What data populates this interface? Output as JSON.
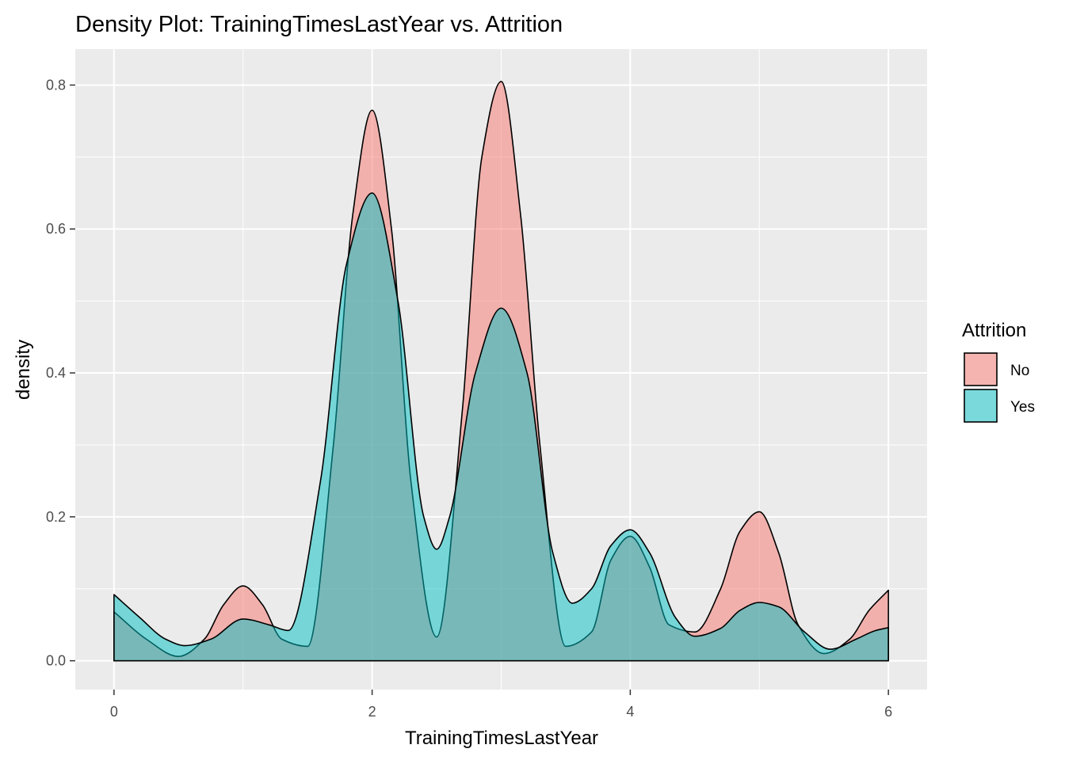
{
  "chart_data": {
    "type": "area",
    "title": "Density Plot: TrainingTimesLastYear vs. Attrition",
    "xlabel": "TrainingTimesLastYear",
    "ylabel": "density",
    "xlim": [
      -0.3,
      6.3
    ],
    "ylim": [
      -0.04,
      0.85
    ],
    "xticks": [
      0,
      2,
      4,
      6
    ],
    "yticks": [
      0.0,
      0.2,
      0.4,
      0.6,
      0.8
    ],
    "xtick_labels": [
      "0",
      "2",
      "4",
      "6"
    ],
    "ytick_labels": [
      "0.0",
      "0.2",
      "0.4",
      "0.6",
      "0.8"
    ],
    "grid": true,
    "legend_position": "right",
    "legend_title": "Attrition",
    "series": [
      {
        "name": "No",
        "color": "#F8766D",
        "x": [
          0,
          0.25,
          0.5,
          0.7,
          0.85,
          1.0,
          1.15,
          1.3,
          1.5,
          1.7,
          1.85,
          2.0,
          2.15,
          2.3,
          2.5,
          2.7,
          2.85,
          3.0,
          3.15,
          3.3,
          3.5,
          3.7,
          3.85,
          4.0,
          4.15,
          4.3,
          4.5,
          4.7,
          4.85,
          5.0,
          5.15,
          5.3,
          5.5,
          5.7,
          5.85,
          6.0
        ],
        "y": [
          0.068,
          0.03,
          0.006,
          0.03,
          0.078,
          0.104,
          0.078,
          0.03,
          0.02,
          0.3,
          0.62,
          0.765,
          0.6,
          0.25,
          0.033,
          0.35,
          0.7,
          0.805,
          0.62,
          0.3,
          0.02,
          0.04,
          0.14,
          0.173,
          0.13,
          0.05,
          0.04,
          0.1,
          0.18,
          0.207,
          0.15,
          0.05,
          0.01,
          0.03,
          0.07,
          0.098
        ]
      },
      {
        "name": "Yes",
        "color": "#00BFC4",
        "x": [
          0,
          0.2,
          0.4,
          0.55,
          0.75,
          1.0,
          1.2,
          1.35,
          1.6,
          1.8,
          2.0,
          2.2,
          2.4,
          2.5,
          2.6,
          2.8,
          3.0,
          3.2,
          3.4,
          3.55,
          3.7,
          3.85,
          4.0,
          4.15,
          4.35,
          4.5,
          4.7,
          4.85,
          5.0,
          5.15,
          5.35,
          5.55,
          5.75,
          5.9,
          6.0
        ],
        "y": [
          0.092,
          0.06,
          0.03,
          0.021,
          0.03,
          0.058,
          0.05,
          0.042,
          0.25,
          0.55,
          0.65,
          0.5,
          0.2,
          0.155,
          0.2,
          0.4,
          0.49,
          0.4,
          0.15,
          0.08,
          0.1,
          0.16,
          0.182,
          0.15,
          0.06,
          0.034,
          0.045,
          0.07,
          0.081,
          0.075,
          0.04,
          0.016,
          0.03,
          0.042,
          0.046
        ]
      }
    ]
  }
}
